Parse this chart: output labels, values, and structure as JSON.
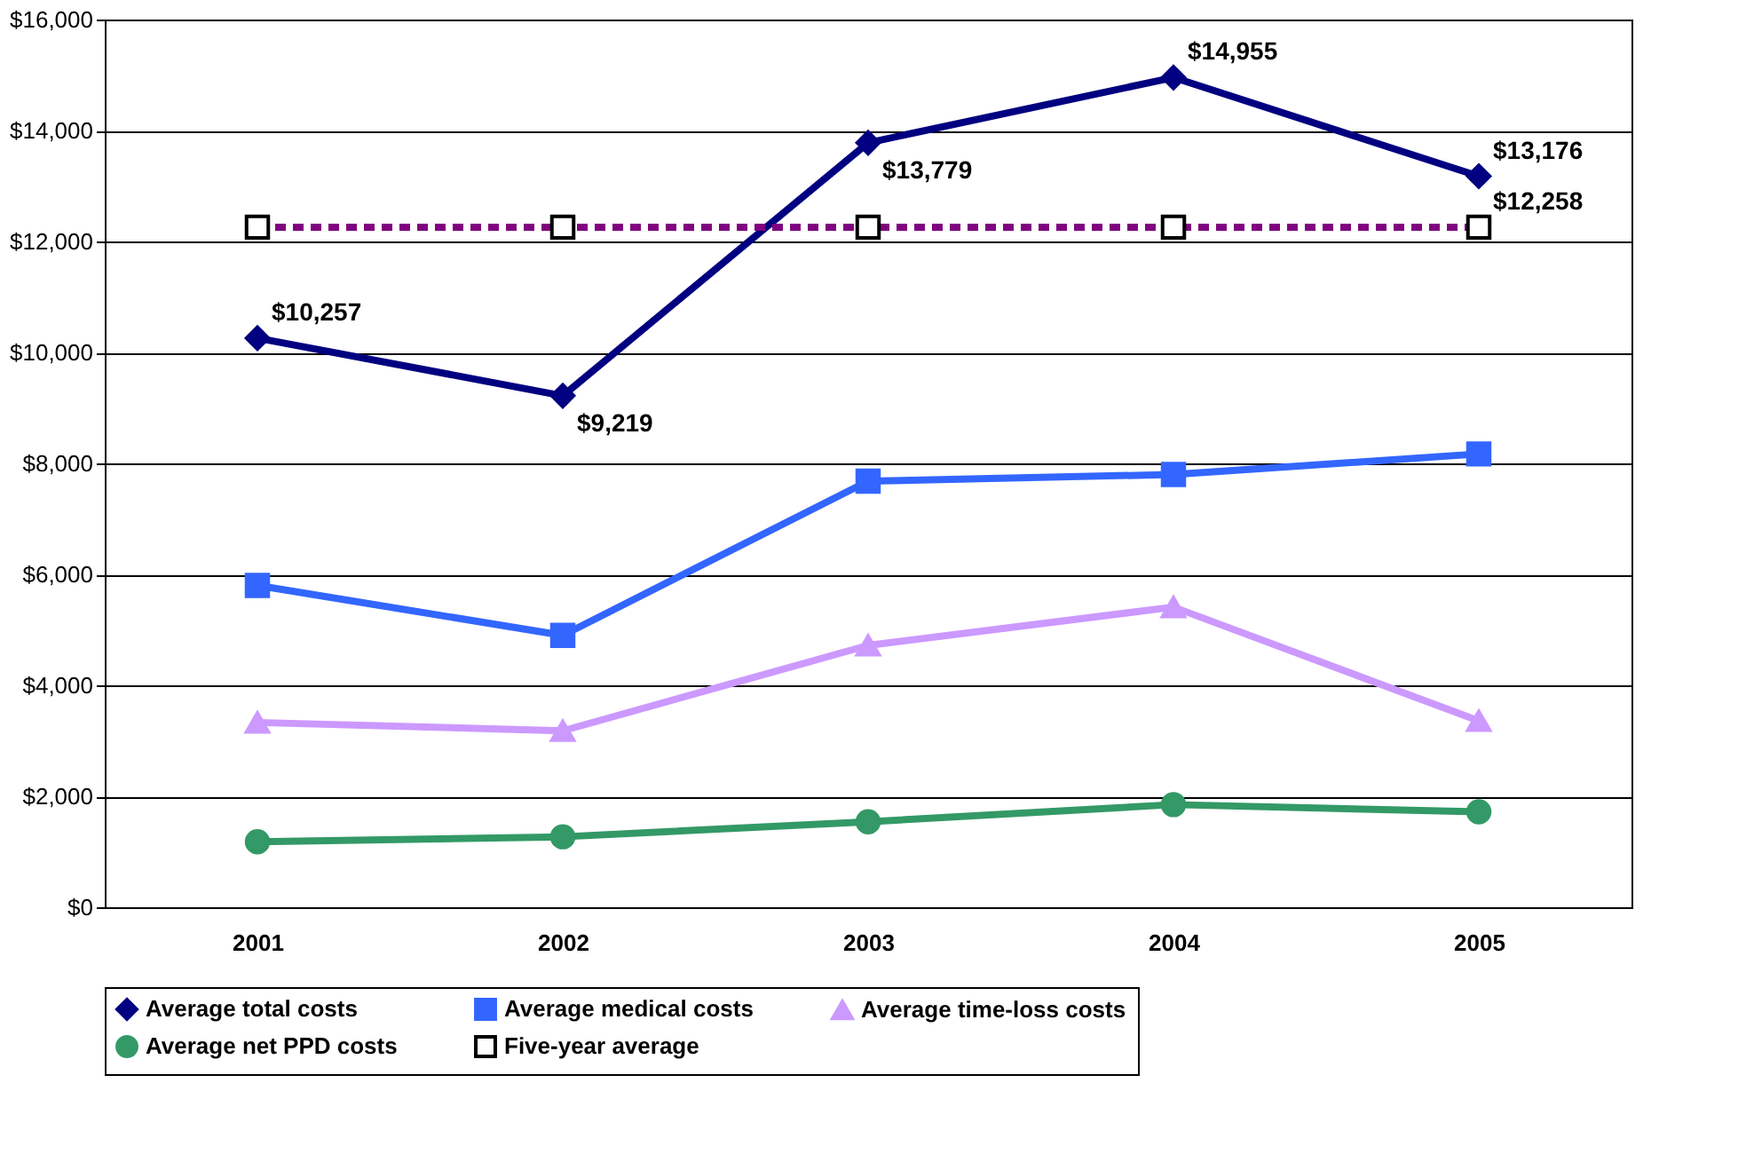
{
  "chart_data": {
    "type": "line",
    "categories": [
      "2001",
      "2002",
      "2003",
      "2004",
      "2005"
    ],
    "series": [
      {
        "name": "Average total costs",
        "color": "#000080",
        "marker": "diamond",
        "line_style": "solid",
        "values": [
          10257,
          9219,
          13779,
          14955,
          13176
        ],
        "value_labels": [
          "$10,257",
          "$9,219",
          "$13,779",
          "$14,955",
          "$13,176"
        ]
      },
      {
        "name": "Average medical costs",
        "color": "#3366ff",
        "marker": "square",
        "line_style": "solid",
        "values": [
          5800,
          4900,
          7680,
          7800,
          8170
        ]
      },
      {
        "name": "Average time-loss costs",
        "color": "#cc99ff",
        "marker": "triangle",
        "line_style": "solid",
        "values": [
          3330,
          3180,
          4720,
          5410,
          3360
        ]
      },
      {
        "name": "Average net PPD costs",
        "color": "#339966",
        "marker": "circle",
        "line_style": "solid",
        "values": [
          1180,
          1270,
          1540,
          1850,
          1720
        ]
      },
      {
        "name": "Five-year average",
        "color": "#800080",
        "marker": "square",
        "line_style": "dashed",
        "values": [
          12258,
          12258,
          12258,
          12258,
          12258
        ],
        "value_labels": [
          null,
          null,
          null,
          null,
          "$12,258"
        ]
      }
    ],
    "ylim": [
      0,
      16000
    ],
    "yticks": [
      {
        "value": 0,
        "label": "$0"
      },
      {
        "value": 2000,
        "label": "$2,000"
      },
      {
        "value": 4000,
        "label": "$4,000"
      },
      {
        "value": 6000,
        "label": "$6,000"
      },
      {
        "value": 8000,
        "label": "$8,000"
      },
      {
        "value": 10000,
        "label": "$10,000"
      },
      {
        "value": 12000,
        "label": "$12,000"
      },
      {
        "value": 14000,
        "label": "$14,000"
      },
      {
        "value": 16000,
        "label": "$16,000"
      }
    ],
    "grid": "y",
    "legend": "bottom"
  }
}
